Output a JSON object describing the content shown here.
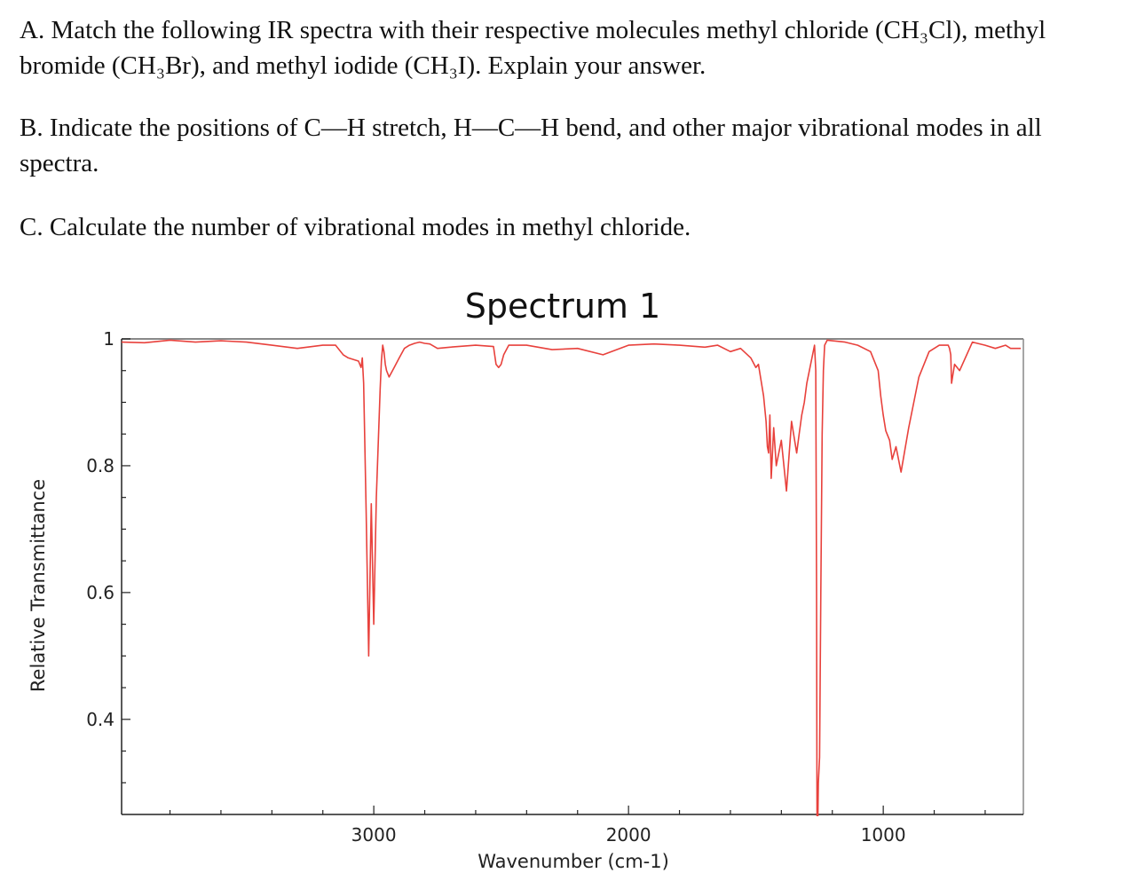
{
  "questions": {
    "a": "A. Match the following IR spectra with their respective molecules methyl chloride (CH₃Cl), methyl bromide (CH₃Br), and methyl iodide (CH₃I). Explain your answer.",
    "b": "B. Indicate the positions of C—H stretch, H—C—H bend, and other major vibrational modes in all spectra.",
    "c": "C. Calculate the number of vibrational modes in methyl chloride."
  },
  "chart_data": {
    "type": "line",
    "title": "Spectrum 1",
    "xlabel": "Wavenumber (cm-1)",
    "ylabel": "Relative Transmittance",
    "xlim": [
      3990,
      450
    ],
    "ylim": [
      0.25,
      1.0
    ],
    "xticks": [
      3000,
      2000,
      1000
    ],
    "yticks": [
      1,
      0.8,
      0.6,
      0.4
    ],
    "xtick_labels": [
      "3000",
      "2000",
      "1000"
    ],
    "ytick_labels": [
      "1",
      "0.8",
      "0.6",
      "0.4"
    ],
    "grid": false,
    "colors": {
      "line": "#e8413c",
      "axis": "#222222",
      "frame": "#888888"
    },
    "series": [
      {
        "x": [
          3990,
          3900,
          3800,
          3700,
          3600,
          3500,
          3400,
          3300,
          3200,
          3150,
          3120,
          3100,
          3060,
          3050,
          3045,
          3040,
          3030,
          3020,
          3010,
          3000,
          2990,
          2975,
          2970,
          2965,
          2960,
          2955,
          2950,
          2940,
          2920,
          2900,
          2880,
          2860,
          2840,
          2820,
          2800,
          2780,
          2750,
          2700,
          2600,
          2530,
          2520,
          2510,
          2500,
          2490,
          2470,
          2400,
          2300,
          2200,
          2100,
          2000,
          1900,
          1800,
          1700,
          1650,
          1600,
          1560,
          1520,
          1500,
          1490,
          1480,
          1470,
          1460,
          1455,
          1450,
          1445,
          1440,
          1430,
          1420,
          1400,
          1380,
          1360,
          1340,
          1330,
          1320,
          1310,
          1300,
          1290,
          1280,
          1270,
          1265,
          1262,
          1260,
          1258,
          1255,
          1250,
          1245,
          1240,
          1235,
          1230,
          1220,
          1200,
          1150,
          1100,
          1050,
          1020,
          1010,
          1000,
          990,
          975,
          965,
          950,
          930,
          900,
          860,
          820,
          780,
          745,
          740,
          735,
          732,
          728,
          720,
          700,
          650,
          600,
          560,
          520,
          500,
          460
        ],
        "y": [
          0.995,
          0.994,
          0.998,
          0.995,
          0.997,
          0.995,
          0.99,
          0.985,
          0.99,
          0.99,
          0.975,
          0.97,
          0.965,
          0.955,
          0.97,
          0.93,
          0.73,
          0.5,
          0.74,
          0.55,
          0.75,
          0.92,
          0.965,
          0.99,
          0.98,
          0.96,
          0.95,
          0.94,
          0.955,
          0.97,
          0.985,
          0.99,
          0.993,
          0.995,
          0.993,
          0.992,
          0.985,
          0.987,
          0.99,
          0.988,
          0.96,
          0.955,
          0.96,
          0.975,
          0.99,
          0.99,
          0.983,
          0.985,
          0.975,
          0.99,
          0.992,
          0.99,
          0.987,
          0.99,
          0.98,
          0.985,
          0.97,
          0.955,
          0.96,
          0.935,
          0.91,
          0.87,
          0.83,
          0.82,
          0.88,
          0.78,
          0.86,
          0.8,
          0.84,
          0.76,
          0.87,
          0.82,
          0.85,
          0.88,
          0.9,
          0.93,
          0.95,
          0.97,
          0.99,
          0.95,
          0.6,
          0.25,
          0.2,
          0.3,
          0.34,
          0.6,
          0.85,
          0.95,
          0.99,
          0.998,
          0.997,
          0.995,
          0.99,
          0.98,
          0.95,
          0.91,
          0.88,
          0.855,
          0.84,
          0.81,
          0.83,
          0.79,
          0.86,
          0.94,
          0.98,
          0.99,
          0.99,
          0.985,
          0.975,
          0.93,
          0.94,
          0.96,
          0.95,
          0.995,
          0.99,
          0.985,
          0.99,
          0.985,
          0.985
        ]
      }
    ]
  }
}
